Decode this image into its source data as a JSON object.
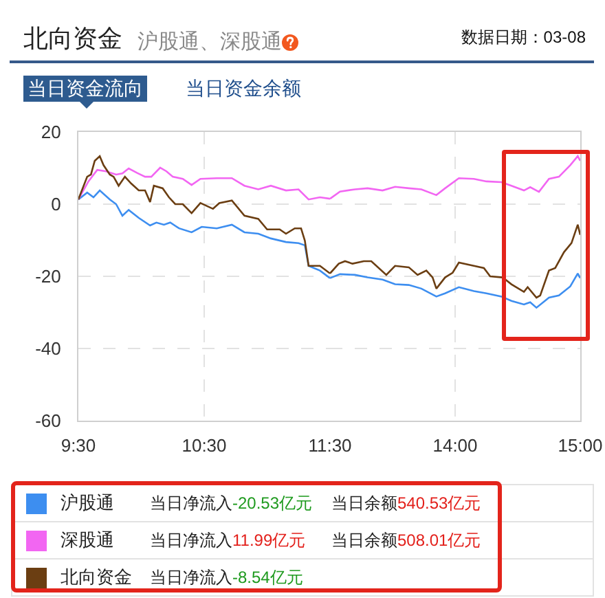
{
  "chart_data": [
    {
      "type": "line",
      "title": "北向资金",
      "subtitle": "沪股通、深股通",
      "annotations": [
        "数据日期：03-08",
        "当日资金流向",
        "当日资金余额",
        "当日净流入-20.53亿元",
        "当日余额540.53亿元",
        "当日净流入11.99亿元",
        "当日余额508.01亿元",
        "当日净流入-8.54亿元"
      ],
      "xlim": [
        9.5,
        11.5
      ],
      "xticks": [
        {
          "value": 9.5,
          "label": "9:30"
        },
        {
          "value": 10.5,
          "label": "10:30"
        },
        {
          "value": 11.5,
          "label": "11:30"
        }
      ],
      "ylim": [
        -60,
        20
      ],
      "yticks": [
        -60,
        -40,
        -20,
        0,
        20
      ],
      "grid": true,
      "legend": "bottom",
      "series": [
        {
          "name": "沪股通",
          "color": "#3d8ef0",
          "x": [
            9.5,
            9.57,
            9.62,
            9.67,
            9.75,
            9.8,
            9.85,
            9.9,
            9.98,
            10.07,
            10.12,
            10.18,
            10.23,
            10.3,
            10.4,
            10.48,
            10.6,
            10.72,
            10.82,
            10.93,
            11.03,
            11.15,
            11.25,
            11.3,
            11.33,
            11.42,
            11.5
          ],
          "values": [
            1.3,
            3.2,
            1.9,
            3.8,
            1.3,
            0,
            -3.2,
            -1.6,
            -3.8,
            -5.9,
            -5.1,
            -5.7,
            -5.1,
            -6.7,
            -7.8,
            -6.3,
            -6.7,
            -5.7,
            -7.8,
            -8.2,
            -9.5,
            -10.5,
            -10.8,
            -11.4,
            -17.1,
            -18.4,
            -20.5
          ]
        },
        {
          "name": "深股通",
          "color": "#f266f2",
          "x": [
            9.5,
            9.58,
            9.65,
            9.72,
            9.8,
            9.85,
            9.9,
            9.97,
            10.03,
            10.08,
            10.15,
            10.2,
            10.25,
            10.33,
            10.4,
            10.47,
            10.6,
            10.72,
            10.82,
            10.93,
            11.03,
            11.15,
            11.25,
            11.33,
            11.42,
            11.5
          ],
          "values": [
            1.3,
            6.3,
            9.5,
            9.1,
            8.2,
            8.5,
            9.9,
            8.6,
            7.6,
            7.6,
            10.1,
            9.1,
            7.6,
            7.0,
            5.3,
            7.0,
            7.2,
            7.2,
            5.1,
            4.1,
            5.1,
            3.8,
            4.1,
            1.3,
            1.9,
            1.5
          ]
        },
        {
          "name": "北向资金",
          "color": "#6b3e12",
          "x": [
            9.5,
            9.57,
            9.6,
            9.63,
            9.67,
            9.7,
            9.75,
            9.78,
            9.82,
            9.87,
            9.92,
            9.98,
            10.03,
            10.07,
            10.1,
            10.17,
            10.22,
            10.27,
            10.33,
            10.4,
            10.47,
            10.57,
            10.62,
            10.72,
            10.82,
            10.93,
            11,
            11.1,
            11.15,
            11.22,
            11.27,
            11.3,
            11.33,
            11.42,
            11.5
          ],
          "values": [
            1.3,
            7.6,
            8.2,
            12.0,
            13.3,
            10.8,
            8.2,
            7.6,
            5.1,
            7.6,
            5.7,
            3.8,
            3.8,
            0.6,
            5.1,
            4.4,
            1.9,
            0,
            0,
            -2.5,
            0.3,
            -1.3,
            0.3,
            1.0,
            -3.2,
            -4.1,
            -7.0,
            -7.0,
            -8.2,
            -6.7,
            -6.7,
            -10.1,
            -17.1,
            -17.1,
            -19.2
          ]
        }
      ]
    },
    {
      "type": "line",
      "xlim": [
        13,
        15
      ],
      "xticks": [
        {
          "value": 14,
          "label": "14:00"
        },
        {
          "value": 15,
          "label": "15:00"
        }
      ],
      "ylim": [
        -60,
        20
      ],
      "yticks": [
        -60,
        -40,
        -20,
        0,
        20
      ],
      "grid": true,
      "tick_labels": "x",
      "series": [
        {
          "color": "#3d8ef0",
          "x": [
            13,
            13.08,
            13.2,
            13.3,
            13.42,
            13.52,
            13.63,
            13.73,
            13.85,
            13.92,
            14.03,
            14.15,
            14.25,
            14.37,
            14.45,
            14.55,
            14.6,
            14.65,
            14.75,
            14.83,
            14.92,
            14.98,
            15
          ],
          "values": [
            -20.5,
            -19.4,
            -19.6,
            -20.3,
            -20.9,
            -22.2,
            -22.4,
            -23.4,
            -25.6,
            -24.7,
            -23.0,
            -24.1,
            -24.7,
            -25.6,
            -26.8,
            -27.8,
            -27.2,
            -28.7,
            -25.9,
            -25.3,
            -22.8,
            -19.2,
            -20.5
          ]
        },
        {
          "color": "#f266f2",
          "x": [
            13,
            13.08,
            13.2,
            13.3,
            13.42,
            13.52,
            13.63,
            13.73,
            13.85,
            13.92,
            14.03,
            14.15,
            14.25,
            14.37,
            14.45,
            14.55,
            14.6,
            14.67,
            14.75,
            14.83,
            14.92,
            14.98,
            15
          ],
          "values": [
            1.5,
            3.5,
            4.1,
            4.4,
            3.8,
            4.8,
            4.4,
            4.1,
            2.5,
            4.4,
            7.2,
            7.0,
            6.3,
            6.1,
            5.1,
            3.8,
            4.7,
            3.4,
            7.0,
            7.6,
            10.8,
            13.3,
            12.0
          ]
        },
        {
          "color": "#6b3e12",
          "x": [
            13,
            13.07,
            13.12,
            13.18,
            13.27,
            13.33,
            13.45,
            13.52,
            13.63,
            13.7,
            13.77,
            13.82,
            13.85,
            13.92,
            13.98,
            14.03,
            14.15,
            14.23,
            14.28,
            14.38,
            14.45,
            14.55,
            14.58,
            14.65,
            14.68,
            14.75,
            14.8,
            14.87,
            14.93,
            14.98,
            15
          ],
          "values": [
            -19.2,
            -16.5,
            -15.8,
            -16.5,
            -15.8,
            -15.8,
            -19.6,
            -17.1,
            -17.5,
            -19.6,
            -18.4,
            -20.3,
            -23.4,
            -20.3,
            -19.0,
            -16.2,
            -17.1,
            -17.7,
            -20.0,
            -20.3,
            -22.2,
            -24.3,
            -23.0,
            -25.9,
            -25.3,
            -18.4,
            -17.7,
            -13.3,
            -10.8,
            -5.7,
            -8.5
          ]
        }
      ]
    }
  ]
}
